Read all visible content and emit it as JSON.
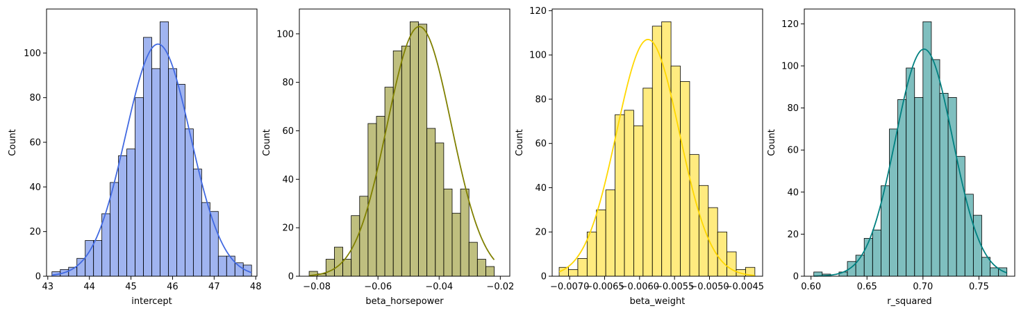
{
  "chart_data": [
    {
      "type": "histogram",
      "xlabel": "intercept",
      "ylabel": "Count",
      "color": "#4169e1",
      "bar_alpha": 0.5,
      "kde": true,
      "bin_start": 43.1,
      "bin_width": 0.2,
      "counts": [
        2,
        3,
        4,
        8,
        16,
        16,
        28,
        42,
        54,
        57,
        80,
        107,
        93,
        114,
        93,
        86,
        66,
        48,
        33,
        29,
        9,
        9,
        6,
        5
      ],
      "xlim": [
        42.97,
        48.03
      ],
      "ylim": [
        0,
        119.7
      ],
      "xticks": [
        43,
        44,
        45,
        46,
        47,
        48
      ],
      "xtick_labels": [
        "43",
        "44",
        "45",
        "46",
        "47",
        "48"
      ],
      "yticks": [
        0,
        20,
        40,
        60,
        80,
        100
      ],
      "ytick_labels": [
        "0",
        "20",
        "40",
        "60",
        "80",
        "100"
      ],
      "kde_peak": {
        "mean": 45.65,
        "sd": 0.78,
        "scale": 104
      }
    },
    {
      "type": "histogram",
      "xlabel": "beta_horsepower",
      "ylabel": "Count",
      "color": "#808000",
      "bar_alpha": 0.5,
      "kde": true,
      "bin_start": -0.0825,
      "bin_width": 0.00275,
      "counts": [
        2,
        1,
        7,
        12,
        7,
        25,
        33,
        63,
        66,
        78,
        93,
        95,
        105,
        104,
        61,
        55,
        36,
        26,
        36,
        14,
        7,
        4
      ],
      "xlim": [
        -0.0857,
        -0.0169
      ],
      "ylim": [
        0,
        110.25
      ],
      "xticks": [
        -0.08,
        -0.06,
        -0.04,
        -0.02
      ],
      "xtick_labels": [
        "−0.08",
        "−0.06",
        "−0.04",
        "−0.02"
      ],
      "yticks": [
        0,
        20,
        40,
        60,
        80,
        100
      ],
      "ytick_labels": [
        "0",
        "20",
        "40",
        "60",
        "80",
        "100"
      ],
      "kde_peak": {
        "mean": -0.0465,
        "sd": 0.0105,
        "scale": 103
      }
    },
    {
      "type": "histogram",
      "xlabel": "beta_weight",
      "ylabel": "Count",
      "color": "#ffd700",
      "bar_alpha": 0.5,
      "kde": true,
      "bin_start": -0.00715,
      "bin_width": 0.0001333,
      "counts": [
        4,
        3,
        8,
        20,
        30,
        39,
        73,
        75,
        68,
        85,
        113,
        115,
        95,
        88,
        55,
        41,
        31,
        20,
        11,
        3,
        4
      ],
      "xlim": [
        -0.00725,
        -0.00424
      ],
      "ylim": [
        0,
        120.75
      ],
      "xticks": [
        -0.007,
        -0.0065,
        -0.006,
        -0.0055,
        -0.005,
        -0.0045
      ],
      "xtick_labels": [
        "−0.0070",
        "−0.0065",
        "−0.0060",
        "−0.0055",
        "−0.0050",
        "−0.0045"
      ],
      "yticks": [
        0,
        20,
        40,
        60,
        80,
        100,
        120
      ],
      "ytick_labels": [
        "0",
        "20",
        "40",
        "60",
        "80",
        "100",
        "120"
      ],
      "kde_peak": {
        "mean": -0.00588,
        "sd": 0.00045,
        "scale": 107
      }
    },
    {
      "type": "histogram",
      "xlabel": "r_squared",
      "ylabel": "Count",
      "color": "#008080",
      "bar_alpha": 0.5,
      "kde": true,
      "bin_start": 0.6025,
      "bin_width": 0.0075,
      "counts": [
        2,
        1,
        0,
        2,
        7,
        10,
        18,
        22,
        43,
        70,
        84,
        99,
        85,
        121,
        103,
        87,
        85,
        57,
        39,
        29,
        9,
        4,
        4
      ],
      "xlim": [
        0.594,
        0.782
      ],
      "ylim": [
        0,
        127.05
      ],
      "xticks": [
        0.6,
        0.65,
        0.7,
        0.75
      ],
      "xtick_labels": [
        "0.60",
        "0.65",
        "0.70",
        "0.75"
      ],
      "yticks": [
        0,
        20,
        40,
        60,
        80,
        100,
        120
      ],
      "ytick_labels": [
        "0",
        "20",
        "40",
        "60",
        "80",
        "100",
        "120"
      ],
      "kde_peak": {
        "mean": 0.701,
        "sd": 0.0255,
        "scale": 108
      }
    }
  ]
}
